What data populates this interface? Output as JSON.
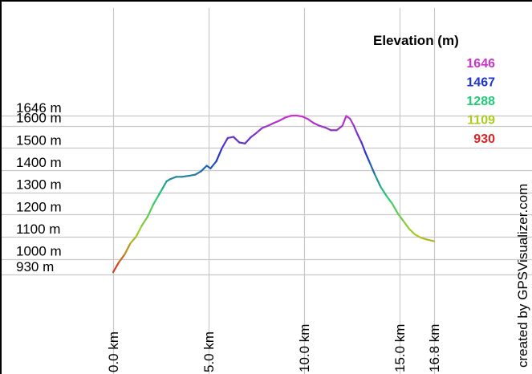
{
  "chart_data": {
    "type": "line",
    "title": "",
    "xlabel": "",
    "ylabel": "",
    "xlim": [
      0,
      16.8
    ],
    "ylim": [
      930,
      1646
    ],
    "x_ticks": [
      0,
      5,
      10,
      15,
      16.8
    ],
    "x_tick_labels": [
      "0.0 km",
      "5.0 km",
      "10.0 km",
      "15.0 km",
      "16.8 km"
    ],
    "y_ticks": [
      930,
      1000,
      1100,
      1200,
      1300,
      1400,
      1500,
      1600,
      1646
    ],
    "y_tick_labels": [
      "930 m",
      "1000 m",
      "1100 m",
      "1200 m",
      "1300 m",
      "1400 m",
      "1500 m",
      "1600 m",
      "1646 m"
    ],
    "grid": true,
    "legend": {
      "title": "Elevation (m)",
      "placement": "top-right",
      "entries": [
        {
          "label": "1646",
          "color": "#cc33cc"
        },
        {
          "label": "1467",
          "color": "#2233cc"
        },
        {
          "label": "1288",
          "color": "#22cc77"
        },
        {
          "label": "1109",
          "color": "#aacc22"
        },
        {
          "label": "930",
          "color": "#dd2222"
        }
      ]
    },
    "color_scale": [
      {
        "value": 930,
        "color": "#dd2222"
      },
      {
        "value": 1109,
        "color": "#aacc22"
      },
      {
        "value": 1288,
        "color": "#22cc77"
      },
      {
        "value": 1467,
        "color": "#2233cc"
      },
      {
        "value": 1646,
        "color": "#cc33cc"
      }
    ],
    "series": [
      {
        "x": [
          0,
          0.3,
          0.6,
          0.9,
          1.2,
          1.5,
          1.8,
          2.1,
          2.4,
          2.6,
          2.8,
          3.0,
          3.3,
          3.6,
          4.0,
          4.3,
          4.6,
          4.9,
          5.1,
          5.4,
          5.7,
          6.0,
          6.3,
          6.6,
          6.9,
          7.2,
          7.5,
          7.8,
          8.1,
          8.4,
          8.7,
          9.0,
          9.3,
          9.6,
          9.9,
          10.2,
          10.5,
          10.8,
          11.1,
          11.4,
          11.7,
          12.0,
          12.2,
          12.4,
          12.6,
          12.8,
          13.0,
          13.2,
          13.4,
          13.7,
          14.0,
          14.3,
          14.6,
          14.9,
          15.2,
          15.5,
          15.8,
          16.1,
          16.4,
          16.8
        ],
        "values": [
          940,
          985,
          1020,
          1070,
          1100,
          1150,
          1190,
          1245,
          1290,
          1320,
          1350,
          1360,
          1370,
          1370,
          1375,
          1380,
          1395,
          1420,
          1408,
          1440,
          1500,
          1545,
          1550,
          1525,
          1520,
          1548,
          1568,
          1590,
          1600,
          1612,
          1623,
          1637,
          1645,
          1646,
          1642,
          1630,
          1612,
          1600,
          1592,
          1580,
          1580,
          1600,
          1644,
          1632,
          1600,
          1560,
          1525,
          1480,
          1440,
          1380,
          1325,
          1285,
          1250,
          1205,
          1170,
          1135,
          1110,
          1096,
          1088,
          1080
        ]
      }
    ],
    "credit": "created by GPSVisualizer.com"
  }
}
